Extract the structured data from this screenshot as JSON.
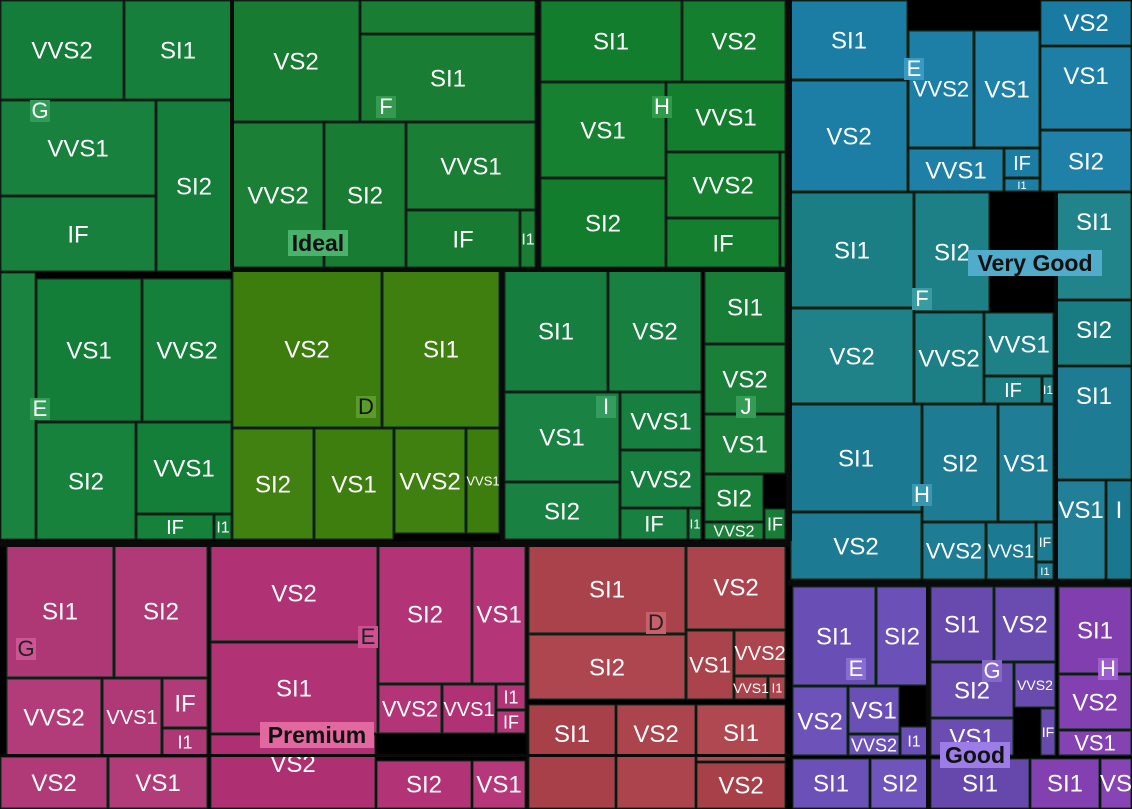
{
  "chart_data": {
    "type": "treemap",
    "title": "",
    "hierarchy": [
      "cut",
      "color",
      "clarity"
    ],
    "groups": [
      {
        "name": "Ideal",
        "colors": [
          {
            "name": "G",
            "clarity": [
              "VVS2",
              "SI1",
              "VVS1",
              "SI2",
              "IF"
            ]
          },
          {
            "name": "F",
            "clarity": [
              "VS2",
              "SI1",
              "VVS2",
              "SI2",
              "VVS1",
              "IF",
              "I1"
            ]
          },
          {
            "name": "H",
            "clarity": [
              "SI1",
              "VS2",
              "VS1",
              "VVS1",
              "VVS2",
              "SI2",
              "IF"
            ]
          },
          {
            "name": "E",
            "clarity": [
              "VS1",
              "VVS2",
              "SI2",
              "VVS1",
              "IF",
              "I1"
            ]
          },
          {
            "name": "D",
            "clarity": [
              "VS2",
              "SI1",
              "SI2",
              "VS1",
              "VVS2",
              "VVS1"
            ]
          },
          {
            "name": "I",
            "clarity": [
              "SI1",
              "VS2",
              "VS1",
              "VVS1",
              "SI2",
              "VVS2",
              "IF",
              "I1"
            ]
          },
          {
            "name": "J",
            "clarity": [
              "SI1",
              "VS2",
              "VS1",
              "SI2",
              "VVS2",
              "IF"
            ]
          }
        ]
      },
      {
        "name": "Very Good",
        "colors": [
          {
            "name": "E",
            "clarity": [
              "SI1",
              "VVS2",
              "VS1",
              "VS2",
              "VVS1",
              "IF",
              "I1",
              "SI2"
            ]
          },
          {
            "name": "F",
            "clarity": [
              "SI1",
              "SI2",
              "VS2",
              "VVS2",
              "VVS1",
              "IF",
              "I1"
            ]
          },
          {
            "name": "H",
            "clarity": [
              "SI1",
              "SI2",
              "VS1",
              "VS2",
              "VVS2",
              "VVS1",
              "IF",
              "I1"
            ]
          }
        ]
      },
      {
        "name": "Premium",
        "colors": [
          {
            "name": "G",
            "clarity": [
              "SI1",
              "SI2",
              "VVS2",
              "VVS1",
              "IF",
              "I1",
              "VS2",
              "VS1"
            ]
          },
          {
            "name": "E",
            "clarity": [
              "VS2",
              "SI2",
              "VS1",
              "SI1",
              "VVS2",
              "VVS1",
              "I1",
              "IF"
            ]
          },
          {
            "name": "D",
            "clarity": [
              "SI1",
              "VS2",
              "SI2",
              "VS1",
              "VVS2",
              "VVS1",
              "I1"
            ]
          }
        ]
      },
      {
        "name": "Good",
        "colors": [
          {
            "name": "E",
            "clarity": [
              "SI1",
              "SI2",
              "VS2",
              "VS1",
              "VVS2",
              "I1"
            ]
          },
          {
            "name": "G",
            "clarity": [
              "SI1",
              "VS2",
              "SI2",
              "VVS2",
              "VS1",
              "IF"
            ]
          },
          {
            "name": "H",
            "clarity": [
              "SI1",
              "VS2",
              "VS1"
            ]
          }
        ]
      }
    ]
  }
}
